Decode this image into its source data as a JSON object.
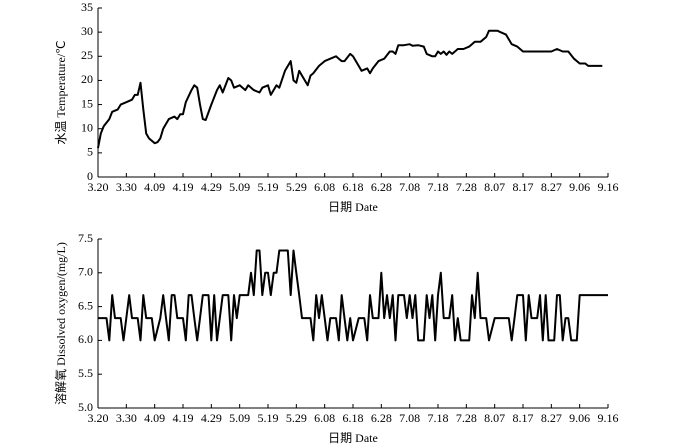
{
  "chart_data": [
    {
      "type": "line",
      "xlabel": "日期 Date",
      "ylabel": "水温 Temperature/℃",
      "color": "#000000",
      "xlim": [
        0,
        180
      ],
      "ylim": [
        0,
        35
      ],
      "xticks": [
        {
          "value": 0,
          "label": "3.20"
        },
        {
          "value": 10,
          "label": "3.30"
        },
        {
          "value": 20,
          "label": "4.09"
        },
        {
          "value": 30,
          "label": "4.19"
        },
        {
          "value": 40,
          "label": "4.29"
        },
        {
          "value": 50,
          "label": "5.09"
        },
        {
          "value": 60,
          "label": "5.19"
        },
        {
          "value": 70,
          "label": "5.29"
        },
        {
          "value": 80,
          "label": "6.08"
        },
        {
          "value": 90,
          "label": "6.18"
        },
        {
          "value": 100,
          "label": "6.28"
        },
        {
          "value": 110,
          "label": "7.08"
        },
        {
          "value": 120,
          "label": "7.18"
        },
        {
          "value": 130,
          "label": "7.28"
        },
        {
          "value": 140,
          "label": "8.07"
        },
        {
          "value": 150,
          "label": "8.17"
        },
        {
          "value": 160,
          "label": "8.27"
        },
        {
          "value": 170,
          "label": "9.06"
        },
        {
          "value": 180,
          "label": "9.16"
        }
      ],
      "yticks": [
        0,
        5,
        10,
        15,
        20,
        25,
        30,
        35
      ],
      "x": [
        0,
        1,
        2,
        4,
        5,
        7,
        8,
        10,
        12,
        13,
        14,
        15,
        16,
        17,
        18,
        20,
        21,
        22,
        23,
        25,
        27,
        28,
        29,
        30,
        31,
        33,
        34,
        35,
        36,
        37,
        38,
        40,
        42,
        43,
        44,
        46,
        47,
        48,
        50,
        52,
        53,
        55,
        57,
        58,
        60,
        61,
        63,
        64,
        66,
        68,
        69,
        70,
        71,
        72,
        74,
        75,
        76,
        78,
        80,
        82,
        84,
        85,
        86,
        87,
        89,
        90,
        92,
        93,
        95,
        96,
        97,
        99,
        101,
        103,
        104,
        105,
        106,
        108,
        110,
        111,
        113,
        115,
        116,
        118,
        119,
        120,
        121,
        122,
        123,
        124,
        125,
        127,
        129,
        131,
        133,
        135,
        137,
        138,
        141,
        142,
        144,
        146,
        148,
        150,
        158,
        160,
        162,
        164,
        166,
        168,
        170,
        172,
        173,
        178
      ],
      "values": [
        6,
        9,
        10.5,
        12,
        13.5,
        14,
        15,
        15.5,
        16,
        17,
        17,
        19.5,
        14,
        9,
        8,
        7,
        7.2,
        8,
        10,
        12,
        12.5,
        12,
        13,
        13,
        15.5,
        18,
        19,
        18.5,
        15,
        12,
        11.8,
        15,
        18,
        19,
        17.5,
        20.5,
        20,
        18.5,
        19,
        18,
        19,
        18,
        17.5,
        18.5,
        19,
        17,
        19,
        18.5,
        22,
        24,
        20,
        19.5,
        22,
        21,
        19,
        21,
        21.5,
        23,
        24,
        24.5,
        25,
        24.5,
        24,
        24,
        25.5,
        25,
        23,
        22,
        22.5,
        21.5,
        22.5,
        24,
        24.5,
        26,
        26,
        25.5,
        27.3,
        27.3,
        27.5,
        27.2,
        27.3,
        27,
        25.5,
        25,
        25,
        26,
        25.5,
        26,
        25.3,
        26,
        25.5,
        26.5,
        26.5,
        27,
        28,
        28,
        29,
        30.3,
        30.3,
        30,
        29.5,
        27.5,
        27,
        26,
        26,
        26,
        26.5,
        26,
        26,
        24.5,
        23.5,
        23.5,
        23,
        23
      ]
    },
    {
      "type": "line",
      "xlabel": "日期 Date",
      "ylabel": "溶解氧 Dissolved oxygen/(mg/L)",
      "color": "#000000",
      "xlim": [
        0,
        180
      ],
      "ylim": [
        5,
        7.5
      ],
      "xticks": [
        {
          "value": 0,
          "label": "3.20"
        },
        {
          "value": 10,
          "label": "3.30"
        },
        {
          "value": 20,
          "label": "4.09"
        },
        {
          "value": 30,
          "label": "4.19"
        },
        {
          "value": 40,
          "label": "4.29"
        },
        {
          "value": 50,
          "label": "5.09"
        },
        {
          "value": 60,
          "label": "5.19"
        },
        {
          "value": 70,
          "label": "5.29"
        },
        {
          "value": 80,
          "label": "6.08"
        },
        {
          "value": 90,
          "label": "6.18"
        },
        {
          "value": 100,
          "label": "6.28"
        },
        {
          "value": 110,
          "label": "7.08"
        },
        {
          "value": 120,
          "label": "7.18"
        },
        {
          "value": 130,
          "label": "7.28"
        },
        {
          "value": 140,
          "label": "8.07"
        },
        {
          "value": 150,
          "label": "8.17"
        },
        {
          "value": 160,
          "label": "8.27"
        },
        {
          "value": 170,
          "label": "9.06"
        },
        {
          "value": 180,
          "label": "9.16"
        }
      ],
      "yticks": [
        {
          "value": 5,
          "label": "5.0"
        },
        5.5,
        {
          "value": 6,
          "label": "6.0"
        },
        6.5,
        {
          "value": 7,
          "label": "7.0"
        },
        7.5
      ],
      "x": [
        0,
        3,
        4,
        5,
        6,
        8,
        9,
        10,
        11,
        12,
        14,
        15,
        16,
        17,
        19,
        20,
        22,
        23,
        24,
        25,
        26,
        27,
        28,
        30,
        31,
        32,
        33,
        34,
        35,
        36,
        37,
        39,
        40,
        41,
        42,
        43,
        44,
        46,
        47,
        48,
        49,
        50,
        53,
        54,
        55,
        56,
        57,
        58,
        59,
        60,
        61,
        62,
        63,
        64,
        67,
        68,
        69,
        70,
        71,
        72,
        75,
        76,
        77,
        78,
        79,
        80,
        81,
        82,
        84,
        85,
        86,
        87,
        88,
        89,
        90,
        92,
        94,
        95,
        96,
        97,
        99,
        100,
        101,
        102,
        103,
        104,
        105,
        106,
        108,
        109,
        110,
        111,
        112,
        113,
        115,
        116,
        117,
        118,
        119,
        120,
        121,
        122,
        124,
        125,
        126,
        127,
        128,
        131,
        132,
        133,
        134,
        135,
        137,
        138,
        140,
        145,
        146,
        147,
        148,
        150,
        151,
        152,
        153,
        155,
        156,
        157,
        158,
        159,
        161,
        162,
        163,
        164,
        165,
        166,
        167,
        169,
        170,
        180
      ],
      "values": [
        6.33,
        6.33,
        6.0,
        6.67,
        6.33,
        6.33,
        6.0,
        6.33,
        6.67,
        6.33,
        6.33,
        6.0,
        6.67,
        6.33,
        6.33,
        6.0,
        6.33,
        6.67,
        6.33,
        6.0,
        6.67,
        6.67,
        6.33,
        6.33,
        6.0,
        6.67,
        6.67,
        6.33,
        6.0,
        6.33,
        6.67,
        6.67,
        6.0,
        6.67,
        6.0,
        6.33,
        6.67,
        6.67,
        6.0,
        6.67,
        6.33,
        6.67,
        6.67,
        7.0,
        6.67,
        7.33,
        7.33,
        6.67,
        7.0,
        7.0,
        6.67,
        7.0,
        7.0,
        7.33,
        7.33,
        6.67,
        7.33,
        7.0,
        6.67,
        6.33,
        6.33,
        6.0,
        6.67,
        6.33,
        6.67,
        6.33,
        6.0,
        6.33,
        6.33,
        6.0,
        6.67,
        6.33,
        6.0,
        6.33,
        6.0,
        6.33,
        6.33,
        6.0,
        6.67,
        6.33,
        6.33,
        7.0,
        6.33,
        6.67,
        6.33,
        6.67,
        6.0,
        6.67,
        6.67,
        6.33,
        6.67,
        6.33,
        6.67,
        6.0,
        6.0,
        6.67,
        6.33,
        6.67,
        6.0,
        6.67,
        7.0,
        6.33,
        6.33,
        6.67,
        6.0,
        6.33,
        6.0,
        6.0,
        6.67,
        6.33,
        7.0,
        6.33,
        6.33,
        6.0,
        6.33,
        6.33,
        6.0,
        6.33,
        6.67,
        6.67,
        6.0,
        6.67,
        6.33,
        6.33,
        6.67,
        6.0,
        6.67,
        6.0,
        6.0,
        6.67,
        6.67,
        6.0,
        6.33,
        6.33,
        6.0,
        6.0,
        6.67,
        6.67
      ]
    }
  ]
}
